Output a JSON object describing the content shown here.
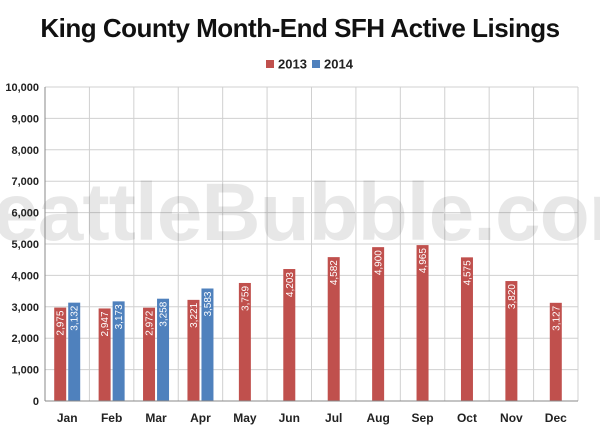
{
  "chart_data": {
    "type": "bar",
    "title": "King County Month-End SFH Active Lisings",
    "categories": [
      "Jan",
      "Feb",
      "Mar",
      "Apr",
      "May",
      "Jun",
      "Jul",
      "Aug",
      "Sep",
      "Oct",
      "Nov",
      "Dec"
    ],
    "series": [
      {
        "name": "2013",
        "color": "#c0504d",
        "values": [
          2975,
          2947,
          2972,
          3221,
          3759,
          4203,
          4582,
          4900,
          4965,
          4575,
          3820,
          3127
        ]
      },
      {
        "name": "2014",
        "color": "#4f81bd",
        "values": [
          3132,
          3173,
          3258,
          3583,
          null,
          null,
          null,
          null,
          null,
          null,
          null,
          null
        ]
      }
    ],
    "data_labels": [
      [
        "2,975",
        "2,947",
        "2,972",
        "3,221",
        "3,759",
        "4,203",
        "4,582",
        "4,900",
        "4,965",
        "4,575",
        "3,820",
        "3,127"
      ],
      [
        "3,132",
        "3,173",
        "3,258",
        "3,583",
        "",
        "",
        "",
        "",
        "",
        "",
        "",
        ""
      ]
    ],
    "yticks": [
      "0",
      "1,000",
      "2,000",
      "3,000",
      "4,000",
      "5,000",
      "6,000",
      "7,000",
      "8,000",
      "9,000",
      "10,000"
    ],
    "ylim": [
      0,
      10000
    ],
    "xlabel": "",
    "ylabel": "",
    "grid": true,
    "legend": "top-center",
    "watermark": "SeattleBubble.com"
  }
}
